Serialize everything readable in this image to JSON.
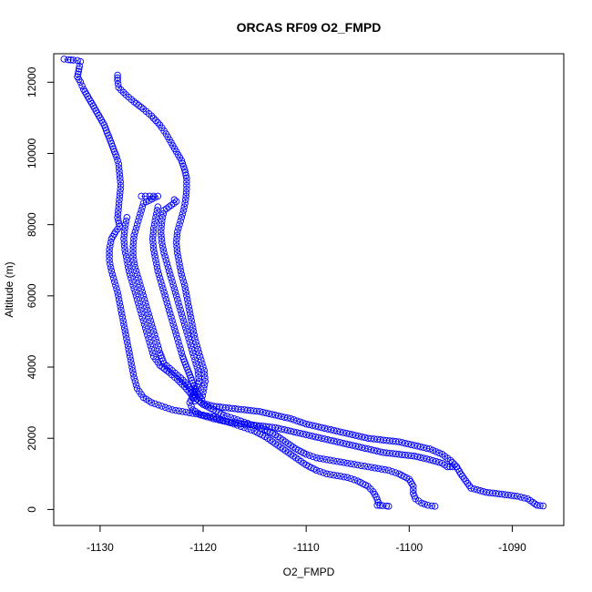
{
  "chart_data": {
    "type": "scatter",
    "title": "ORCAS RF09 O2_FMPD",
    "xlabel": "O2_FMPD",
    "ylabel": "Altitude (m)",
    "xlim": [
      -1134.5,
      -1085
    ],
    "ylim": [
      -450,
      12800
    ],
    "xticks": [
      -1130,
      -1120,
      -1110,
      -1100,
      -1090
    ],
    "yticks": [
      0,
      2000,
      4000,
      6000,
      8000,
      10000,
      12000
    ],
    "grid": false,
    "legend": "none",
    "marker_color": "#0000ff",
    "series": [
      {
        "points": [
          [
            -1133.5,
            12650
          ],
          [
            -1133.1,
            12630
          ],
          [
            -1132.6,
            12620
          ],
          [
            -1132.2,
            12610
          ],
          [
            -1131.9,
            12580
          ],
          [
            -1132.0,
            12450
          ],
          [
            -1132.1,
            12300
          ],
          [
            -1132.2,
            12150
          ],
          [
            -1131.9,
            12000
          ],
          [
            -1131.6,
            11800
          ],
          [
            -1131.2,
            11600
          ],
          [
            -1130.8,
            11400
          ],
          [
            -1130.4,
            11200
          ],
          [
            -1130.0,
            11000
          ],
          [
            -1129.6,
            10800
          ],
          [
            -1129.2,
            10500
          ],
          [
            -1128.8,
            10200
          ],
          [
            -1128.4,
            9900
          ],
          [
            -1128.2,
            9700
          ],
          [
            -1128.1,
            9400
          ],
          [
            -1128.0,
            9100
          ],
          [
            -1128.1,
            8800
          ],
          [
            -1128.2,
            8500
          ],
          [
            -1128.3,
            8200
          ],
          [
            -1128.1,
            7950
          ],
          [
            -1128.5,
            7800
          ],
          [
            -1128.9,
            7600
          ],
          [
            -1129.1,
            7300
          ],
          [
            -1129.1,
            7000
          ],
          [
            -1128.9,
            6700
          ],
          [
            -1128.6,
            6400
          ],
          [
            -1128.3,
            6100
          ],
          [
            -1128.1,
            5800
          ],
          [
            -1127.9,
            5500
          ],
          [
            -1127.7,
            5200
          ],
          [
            -1127.5,
            4900
          ],
          [
            -1127.3,
            4600
          ],
          [
            -1127.1,
            4300
          ],
          [
            -1126.9,
            4000
          ],
          [
            -1126.7,
            3700
          ],
          [
            -1126.4,
            3400
          ],
          [
            -1125.8,
            3150
          ],
          [
            -1125.0,
            3000
          ],
          [
            -1124.0,
            2900
          ],
          [
            -1123.0,
            2800
          ],
          [
            -1122.0,
            2750
          ],
          [
            -1121.0,
            2700
          ],
          [
            -1120.0,
            2650
          ],
          [
            -1119.0,
            2600
          ],
          [
            -1118.0,
            2500
          ],
          [
            -1117.0,
            2400
          ],
          [
            -1116.0,
            2300
          ],
          [
            -1115.0,
            2200
          ],
          [
            -1114.0,
            2050
          ],
          [
            -1113.0,
            1850
          ],
          [
            -1112.0,
            1650
          ],
          [
            -1111.0,
            1450
          ],
          [
            -1110.0,
            1250
          ],
          [
            -1109.0,
            1100
          ],
          [
            -1108.0,
            1000
          ],
          [
            -1107.0,
            950
          ],
          [
            -1106.0,
            900
          ],
          [
            -1105.0,
            800
          ],
          [
            -1104.0,
            650
          ],
          [
            -1103.5,
            500
          ],
          [
            -1103.2,
            350
          ],
          [
            -1103.0,
            200
          ],
          [
            -1103.1,
            120
          ],
          [
            -1102.6,
            110
          ],
          [
            -1102.2,
            100
          ],
          [
            -1102.0,
            90
          ]
        ]
      },
      {
        "points": [
          [
            -1128.3,
            12200
          ],
          [
            -1128.3,
            12050
          ],
          [
            -1128.2,
            11850
          ],
          [
            -1127.5,
            11650
          ],
          [
            -1126.7,
            11450
          ],
          [
            -1125.8,
            11250
          ],
          [
            -1125.0,
            11050
          ],
          [
            -1124.2,
            10800
          ],
          [
            -1123.6,
            10550
          ],
          [
            -1123.1,
            10300
          ],
          [
            -1122.6,
            10050
          ],
          [
            -1122.1,
            9800
          ],
          [
            -1121.8,
            9550
          ],
          [
            -1121.6,
            9300
          ],
          [
            -1121.6,
            9000
          ],
          [
            -1121.7,
            8700
          ],
          [
            -1121.9,
            8400
          ],
          [
            -1122.2,
            8100
          ],
          [
            -1122.5,
            7800
          ],
          [
            -1122.6,
            7500
          ],
          [
            -1122.5,
            7200
          ],
          [
            -1122.3,
            6900
          ],
          [
            -1122.1,
            6600
          ],
          [
            -1121.8,
            6300
          ],
          [
            -1121.6,
            6000
          ],
          [
            -1121.4,
            5700
          ],
          [
            -1121.2,
            5400
          ],
          [
            -1121.0,
            5100
          ],
          [
            -1120.8,
            4800
          ],
          [
            -1120.5,
            4500
          ],
          [
            -1120.2,
            4200
          ],
          [
            -1119.9,
            3900
          ],
          [
            -1119.8,
            3600
          ],
          [
            -1120.0,
            3300
          ],
          [
            -1120.2,
            3000
          ],
          [
            -1119.0,
            2900
          ],
          [
            -1117.5,
            2850
          ],
          [
            -1116.0,
            2800
          ],
          [
            -1114.5,
            2750
          ],
          [
            -1113.0,
            2650
          ],
          [
            -1111.5,
            2550
          ],
          [
            -1110.0,
            2400
          ],
          [
            -1108.5,
            2300
          ],
          [
            -1107.0,
            2200
          ],
          [
            -1105.5,
            2100
          ],
          [
            -1104.0,
            2000
          ],
          [
            -1102.5,
            1950
          ],
          [
            -1101.0,
            1900
          ],
          [
            -1099.5,
            1800
          ],
          [
            -1098.0,
            1700
          ],
          [
            -1096.8,
            1550
          ],
          [
            -1096.0,
            1380
          ],
          [
            -1095.4,
            1200
          ],
          [
            -1095.0,
            1000
          ],
          [
            -1094.5,
            800
          ],
          [
            -1094.0,
            600
          ],
          [
            -1092.5,
            480
          ],
          [
            -1091.0,
            430
          ],
          [
            -1089.5,
            370
          ],
          [
            -1088.5,
            300
          ],
          [
            -1088.0,
            200
          ],
          [
            -1087.6,
            120
          ],
          [
            -1087.3,
            110
          ],
          [
            -1087.0,
            100
          ]
        ]
      },
      {
        "points": [
          [
            -1126.0,
            8800
          ],
          [
            -1125.6,
            8800
          ],
          [
            -1125.2,
            8800
          ],
          [
            -1124.8,
            8800
          ],
          [
            -1124.4,
            8800
          ],
          [
            -1125.8,
            8600
          ],
          [
            -1126.1,
            8300
          ],
          [
            -1126.4,
            8000
          ],
          [
            -1126.7,
            7700
          ],
          [
            -1126.8,
            7400
          ],
          [
            -1126.8,
            7100
          ],
          [
            -1126.6,
            6800
          ],
          [
            -1126.3,
            6500
          ],
          [
            -1126.0,
            6200
          ],
          [
            -1125.7,
            5900
          ],
          [
            -1125.4,
            5600
          ],
          [
            -1125.1,
            5300
          ],
          [
            -1124.8,
            5000
          ],
          [
            -1124.5,
            4700
          ],
          [
            -1124.2,
            4400
          ],
          [
            -1123.8,
            4100
          ],
          [
            -1123.0,
            3900
          ],
          [
            -1122.2,
            3700
          ],
          [
            -1121.5,
            3500
          ],
          [
            -1121.0,
            3300
          ],
          [
            -1120.6,
            3100
          ],
          [
            -1120.0,
            2950
          ],
          [
            -1119.0,
            2800
          ],
          [
            -1118.0,
            2650
          ],
          [
            -1117.0,
            2550
          ],
          [
            -1116.0,
            2450
          ],
          [
            -1115.0,
            2350
          ],
          [
            -1114.0,
            2250
          ],
          [
            -1113.0,
            2100
          ],
          [
            -1112.0,
            1900
          ],
          [
            -1111.0,
            1700
          ],
          [
            -1110.0,
            1550
          ],
          [
            -1109.0,
            1450
          ],
          [
            -1108.0,
            1400
          ],
          [
            -1107.0,
            1350
          ],
          [
            -1106.0,
            1300
          ],
          [
            -1105.0,
            1250
          ],
          [
            -1104.0,
            1200
          ],
          [
            -1103.0,
            1150
          ],
          [
            -1102.0,
            1100
          ],
          [
            -1101.0,
            1000
          ],
          [
            -1100.0,
            850
          ],
          [
            -1099.6,
            650
          ],
          [
            -1099.6,
            450
          ],
          [
            -1099.4,
            300
          ],
          [
            -1098.8,
            180
          ],
          [
            -1098.2,
            120
          ],
          [
            -1097.8,
            100
          ],
          [
            -1097.5,
            90
          ]
        ]
      },
      {
        "points": [
          [
            -1122.8,
            8700
          ],
          [
            -1122.6,
            8650
          ],
          [
            -1123.8,
            8400
          ],
          [
            -1124.0,
            8100
          ],
          [
            -1124.1,
            7800
          ],
          [
            -1124.0,
            7500
          ],
          [
            -1123.8,
            7200
          ],
          [
            -1123.5,
            6900
          ],
          [
            -1123.2,
            6600
          ],
          [
            -1122.9,
            6300
          ],
          [
            -1122.6,
            6000
          ],
          [
            -1122.3,
            5700
          ],
          [
            -1122.0,
            5400
          ],
          [
            -1121.7,
            5100
          ],
          [
            -1121.4,
            4800
          ],
          [
            -1121.1,
            4500
          ],
          [
            -1120.8,
            4200
          ],
          [
            -1120.5,
            3900
          ],
          [
            -1120.4,
            3600
          ],
          [
            -1120.8,
            3300
          ],
          [
            -1121.3,
            3000
          ],
          [
            -1121.0,
            2800
          ],
          [
            -1120.2,
            2650
          ],
          [
            -1119.0,
            2550
          ],
          [
            -1117.5,
            2450
          ],
          [
            -1116.0,
            2400
          ],
          [
            -1114.5,
            2350
          ],
          [
            -1113.0,
            2300
          ],
          [
            -1111.5,
            2200
          ],
          [
            -1110.0,
            2100
          ],
          [
            -1108.5,
            2000
          ],
          [
            -1107.0,
            1900
          ],
          [
            -1105.5,
            1800
          ],
          [
            -1104.0,
            1700
          ],
          [
            -1102.5,
            1600
          ],
          [
            -1101.0,
            1550
          ],
          [
            -1099.5,
            1500
          ],
          [
            -1098.0,
            1400
          ],
          [
            -1096.8,
            1300
          ],
          [
            -1096.3,
            1200
          ],
          [
            -1095.8,
            1200
          ],
          [
            -1095.4,
            1200
          ]
        ]
      },
      {
        "points": [
          [
            -1127.4,
            8200
          ],
          [
            -1127.6,
            7900
          ],
          [
            -1127.7,
            7600
          ],
          [
            -1127.6,
            7300
          ],
          [
            -1127.4,
            7000
          ],
          [
            -1127.2,
            6700
          ],
          [
            -1126.9,
            6400
          ],
          [
            -1126.6,
            6100
          ],
          [
            -1126.3,
            5800
          ],
          [
            -1126.0,
            5500
          ],
          [
            -1125.7,
            5200
          ],
          [
            -1125.4,
            4900
          ],
          [
            -1125.1,
            4600
          ],
          [
            -1124.8,
            4300
          ],
          [
            -1124.2,
            4050
          ],
          [
            -1123.3,
            3850
          ],
          [
            -1122.5,
            3650
          ],
          [
            -1121.8,
            3450
          ],
          [
            -1121.2,
            3250
          ],
          [
            -1120.8,
            3050
          ]
        ]
      },
      {
        "points": [
          [
            -1124.4,
            8500
          ],
          [
            -1124.6,
            8200
          ],
          [
            -1124.8,
            7900
          ],
          [
            -1124.9,
            7600
          ],
          [
            -1124.8,
            7300
          ],
          [
            -1124.6,
            7000
          ],
          [
            -1124.4,
            6700
          ],
          [
            -1124.1,
            6400
          ],
          [
            -1123.8,
            6100
          ],
          [
            -1123.5,
            5800
          ],
          [
            -1123.2,
            5500
          ],
          [
            -1122.9,
            5200
          ],
          [
            -1122.6,
            4900
          ],
          [
            -1122.3,
            4600
          ],
          [
            -1122.0,
            4300
          ],
          [
            -1121.6,
            4000
          ],
          [
            -1121.2,
            3700
          ],
          [
            -1120.8,
            3400
          ],
          [
            -1120.3,
            3150
          ]
        ]
      }
    ]
  }
}
